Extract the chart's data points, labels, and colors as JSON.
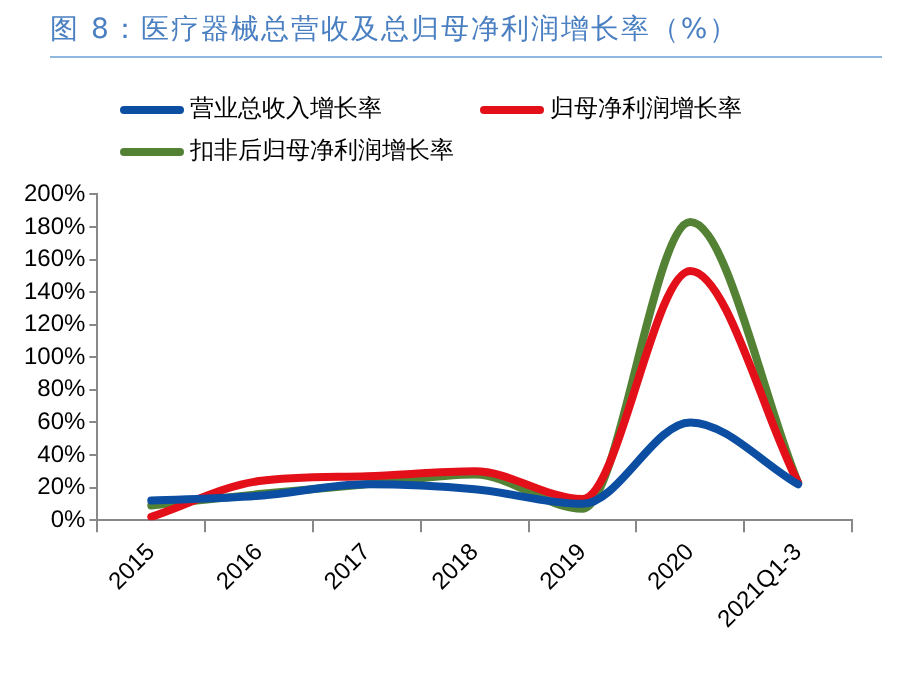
{
  "chart_data": {
    "type": "line",
    "title": "图 8：医疗器械总营收及总归母净利润增长率（%）",
    "categories": [
      "2015",
      "2016",
      "2017",
      "2018",
      "2019",
      "2020",
      "2021Q1-3"
    ],
    "series": [
      {
        "name": "营业总收入增长率",
        "color": "#0b4ea2",
        "values": [
          12,
          15,
          22,
          19,
          10,
          60,
          22
        ]
      },
      {
        "name": "归母净利润增长率",
        "color": "#e3101a",
        "values": [
          2,
          24,
          27,
          30,
          13,
          153,
          23
        ]
      },
      {
        "name": "扣非后归母净利润增长率",
        "color": "#548235",
        "values": [
          9,
          16,
          22,
          28,
          7,
          183,
          23
        ]
      }
    ],
    "ylim": [
      0,
      200
    ],
    "yticks": [
      {
        "value": 0,
        "label": "0%"
      },
      {
        "value": 20,
        "label": "20%"
      },
      {
        "value": 40,
        "label": "40%"
      },
      {
        "value": 60,
        "label": "60%"
      },
      {
        "value": 80,
        "label": "80%"
      },
      {
        "value": 100,
        "label": "100%"
      },
      {
        "value": 120,
        "label": "120%"
      },
      {
        "value": 140,
        "label": "140%"
      },
      {
        "value": 160,
        "label": "160%"
      },
      {
        "value": 180,
        "label": "180%"
      },
      {
        "value": 200,
        "label": "200%"
      }
    ],
    "grid": false,
    "legend": "top",
    "marker": "none",
    "line_style": "solid"
  }
}
